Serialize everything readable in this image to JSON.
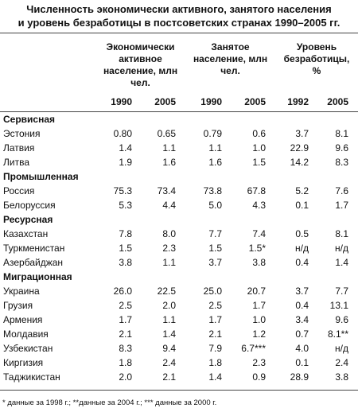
{
  "title_lines": [
    "Численность экономически активного, занятого населения",
    "и уровень безработицы в постсоветских странах 1990–2005 гг."
  ],
  "column_groups": [
    "Экономически активное население, млн чел.",
    "Занятое население, млн чел.",
    "Уровень безработицы, %"
  ],
  "years": [
    1990,
    2005,
    1990,
    2005,
    1992,
    2005
  ],
  "groups": [
    {
      "name": "Сервисная",
      "rows": [
        [
          "Эстония",
          "0.80",
          "0.65",
          "0.79",
          "0.6",
          "3.7",
          "8.1"
        ],
        [
          "Латвия",
          "1.4",
          "1.1",
          "1.1",
          "1.0",
          "22.9",
          "9.6"
        ],
        [
          "Литва",
          "1.9",
          "1.6",
          "1.6",
          "1.5",
          "14.2",
          "8.3"
        ]
      ]
    },
    {
      "name": "Промышленная",
      "rows": [
        [
          "Россия",
          "75.3",
          "73.4",
          "73.8",
          "67.8",
          "5.2",
          "7.6"
        ],
        [
          "Белоруссия",
          "5.3",
          "4.4",
          "5.0",
          "4.3",
          "0.1",
          "1.7"
        ]
      ]
    },
    {
      "name": "Ресурсная",
      "rows": [
        [
          "Казахстан",
          "7.8",
          "8.0",
          "7.7",
          "7.4",
          "0.5",
          "8.1"
        ],
        [
          "Туркменистан",
          "1.5",
          "2.3",
          "1.5",
          "1.5*",
          "н/д",
          "н/д"
        ],
        [
          "Азербайджан",
          "3.8",
          "1.1",
          "3.7",
          "3.8",
          "0.4",
          "1.4"
        ]
      ]
    },
    {
      "name": "Миграционная",
      "rows": [
        [
          "Украина",
          "26.0",
          "22.5",
          "25.0",
          "20.7",
          "3.7",
          "7.7"
        ],
        [
          "Грузия",
          "2.5",
          "2.0",
          "2.5",
          "1.7",
          "0.4",
          "13.1"
        ],
        [
          "Армения",
          "1.7",
          "1.1",
          "1.7",
          "1.0",
          "3.4",
          "9.6"
        ],
        [
          "Молдавия",
          "2.1",
          "1.4",
          "2.1",
          "1.2",
          "0.7",
          "8.1**"
        ],
        [
          "Узбекистан",
          "8.3",
          "9.4",
          "7.9",
          "6.7***",
          "4.0",
          "н/д"
        ],
        [
          "Киргизия",
          "1.8",
          "2.4",
          "1.8",
          "2.3",
          "0.1",
          "2.4"
        ],
        [
          "Таджикистан",
          "2.0",
          "2.1",
          "1.4",
          "0.9",
          "28.9",
          "3.8"
        ]
      ]
    }
  ],
  "footnote": "* данные за 1998 г.; **данные за 2004 г.; *** данные за 2000 г."
}
